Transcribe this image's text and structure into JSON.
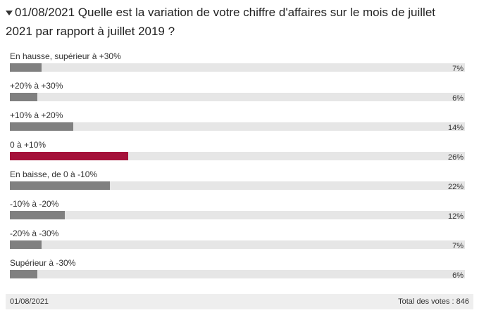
{
  "chart_data": {
    "type": "bar",
    "orientation": "horizontal",
    "title": "01/08/2021 Quelle est la variation de votre chiffre d'affaires sur le mois de juillet 2021 par rapport à juillet 2019 ?",
    "categories": [
      "En hausse, supérieur à +30%",
      "+20% à +30%",
      "+10% à +20%",
      "0 à +10%",
      "En baisse, de 0 à -10%",
      "-10% à -20%",
      "-20% à -30%",
      "Supérieur à -30%"
    ],
    "values": [
      7,
      6,
      14,
      26,
      22,
      12,
      7,
      6
    ],
    "value_labels": [
      "7%",
      "6%",
      "14%",
      "26%",
      "22%",
      "12%",
      "7%",
      "6%"
    ],
    "colors": [
      "#808080",
      "#808080",
      "#808080",
      "#a5113a",
      "#808080",
      "#808080",
      "#808080",
      "#808080"
    ],
    "xlim": [
      0,
      100
    ],
    "footer_left": "01/08/2021",
    "footer_right": "Total des votes : 846"
  }
}
